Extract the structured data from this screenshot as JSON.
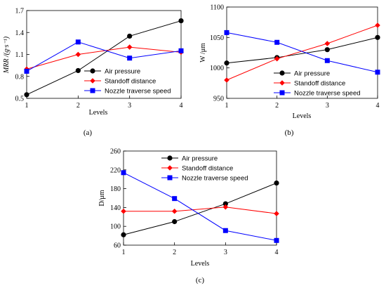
{
  "chart_data": [
    {
      "type": "line",
      "caption": "(a)",
      "xlabel": "Levels",
      "ylabel": "MRR /(g·s⁻¹)",
      "categories": [
        "1",
        "2",
        "3",
        "4"
      ],
      "ylim": [
        0.5,
        1.7
      ],
      "yticks": [
        "0.5",
        "0.8",
        "1.1",
        "1.4",
        "1.7"
      ],
      "legend_position": "bottom-right",
      "series": [
        {
          "name": "Air pressure",
          "color": "#000000",
          "marker": "circle",
          "values": [
            0.55,
            0.88,
            1.35,
            1.56
          ]
        },
        {
          "name": "Standoff distance",
          "color": "#ff0000",
          "marker": "diamond",
          "values": [
            0.9,
            1.1,
            1.2,
            1.13
          ]
        },
        {
          "name": "Nozzle traverse speed",
          "color": "#0000ff",
          "marker": "square",
          "values": [
            0.87,
            1.27,
            1.05,
            1.15
          ]
        }
      ]
    },
    {
      "type": "line",
      "caption": "(b)",
      "xlabel": "Levels",
      "ylabel": "W /μm",
      "categories": [
        "1",
        "2",
        "3",
        "4"
      ],
      "ylim": [
        950,
        1100
      ],
      "yticks": [
        "950",
        "1000",
        "1050",
        "1100"
      ],
      "legend_position": "bottom-right",
      "series": [
        {
          "name": "Air pressure",
          "color": "#000000",
          "marker": "circle",
          "values": [
            1008,
            1017,
            1030,
            1050
          ]
        },
        {
          "name": "Standoff distance",
          "color": "#ff0000",
          "marker": "diamond",
          "values": [
            980,
            1015,
            1040,
            1070
          ]
        },
        {
          "name": "Nozzle traverse speed",
          "color": "#0000ff",
          "marker": "square",
          "values": [
            1058,
            1042,
            1012,
            993
          ]
        }
      ]
    },
    {
      "type": "line",
      "caption": "(c)",
      "xlabel": "Levels",
      "ylabel": "D/μm",
      "categories": [
        "1",
        "2",
        "3",
        "4"
      ],
      "ylim": [
        60,
        260
      ],
      "yticks": [
        "60",
        "100",
        "140",
        "180",
        "220",
        "260"
      ],
      "legend_position": "top-right",
      "series": [
        {
          "name": "Air pressure",
          "color": "#000000",
          "marker": "circle",
          "values": [
            82,
            110,
            148,
            192
          ]
        },
        {
          "name": "Standoff distance",
          "color": "#ff0000",
          "marker": "diamond",
          "values": [
            132,
            132,
            141,
            127
          ]
        },
        {
          "name": "Nozzle traverse speed",
          "color": "#0000ff",
          "marker": "square",
          "values": [
            214,
            159,
            91,
            70
          ]
        }
      ]
    }
  ]
}
